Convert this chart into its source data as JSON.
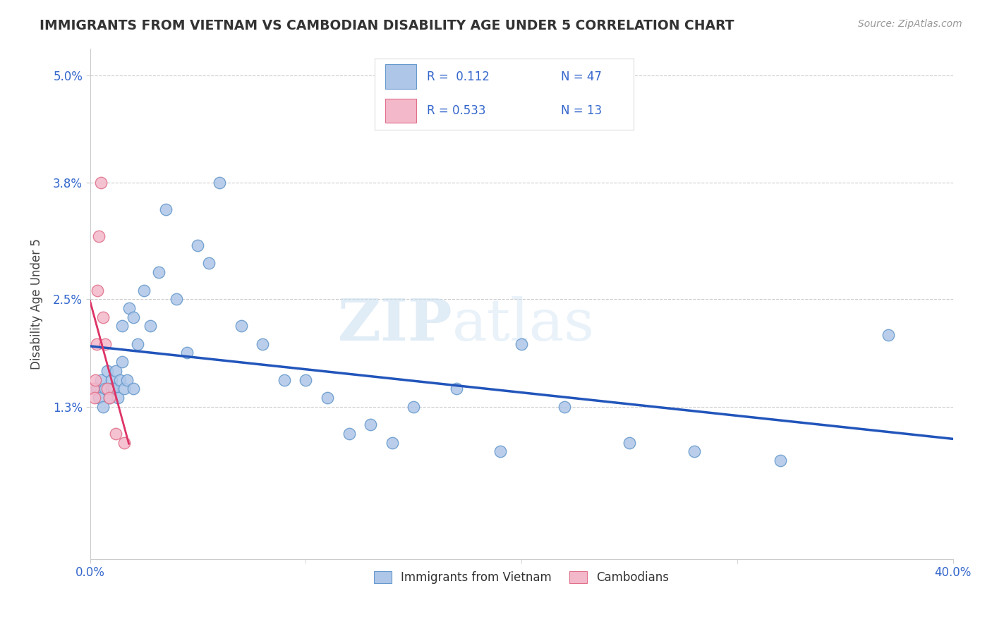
{
  "title": "IMMIGRANTS FROM VIETNAM VS CAMBODIAN DISABILITY AGE UNDER 5 CORRELATION CHART",
  "source": "Source: ZipAtlas.com",
  "ylabel": "Disability Age Under 5",
  "xmin": 0.0,
  "xmax": 40.0,
  "ymin": -0.4,
  "ymax": 5.3,
  "blue_color": "#aec6e8",
  "blue_edge_color": "#6699cc",
  "pink_color": "#f4b8cb",
  "pink_edge_color": "#e0708a",
  "blue_line_color": "#2255bb",
  "pink_line_color": "#dd3366",
  "legend_label1": "Immigrants from Vietnam",
  "legend_label2": "Cambodians",
  "watermark": "ZIPatlas",
  "blue_x": [
    0.3,
    0.4,
    0.5,
    0.6,
    0.7,
    0.8,
    0.9,
    1.0,
    1.0,
    1.1,
    1.2,
    1.3,
    1.4,
    1.5,
    1.5,
    1.6,
    1.7,
    1.8,
    2.0,
    2.0,
    2.2,
    2.5,
    2.8,
    3.2,
    3.5,
    4.0,
    4.5,
    5.0,
    5.5,
    6.0,
    7.0,
    8.0,
    9.0,
    10.0,
    11.0,
    12.0,
    13.0,
    14.0,
    15.0,
    17.0,
    19.0,
    20.0,
    22.0,
    25.0,
    28.0,
    32.0,
    37.0
  ],
  "blue_y": [
    1.5,
    1.4,
    1.6,
    1.3,
    1.5,
    1.7,
    1.4,
    1.6,
    1.5,
    1.5,
    1.7,
    1.4,
    1.6,
    1.8,
    2.2,
    1.5,
    1.6,
    2.4,
    2.3,
    1.5,
    2.0,
    2.6,
    2.2,
    2.8,
    3.5,
    2.5,
    1.9,
    3.1,
    2.9,
    3.8,
    2.2,
    2.0,
    1.6,
    1.6,
    1.4,
    1.0,
    1.1,
    0.9,
    1.3,
    1.5,
    0.8,
    2.0,
    1.3,
    0.9,
    0.8,
    0.7,
    2.1
  ],
  "pink_x": [
    0.15,
    0.2,
    0.25,
    0.3,
    0.35,
    0.4,
    0.5,
    0.6,
    0.7,
    0.8,
    0.9,
    1.2,
    1.6
  ],
  "pink_y": [
    1.5,
    1.4,
    1.6,
    2.0,
    2.6,
    3.2,
    3.8,
    2.3,
    2.0,
    1.5,
    1.4,
    1.0,
    0.9
  ],
  "grid_color": "#cccccc",
  "background_color": "#ffffff",
  "title_color": "#333333",
  "axis_label_color": "#444444"
}
